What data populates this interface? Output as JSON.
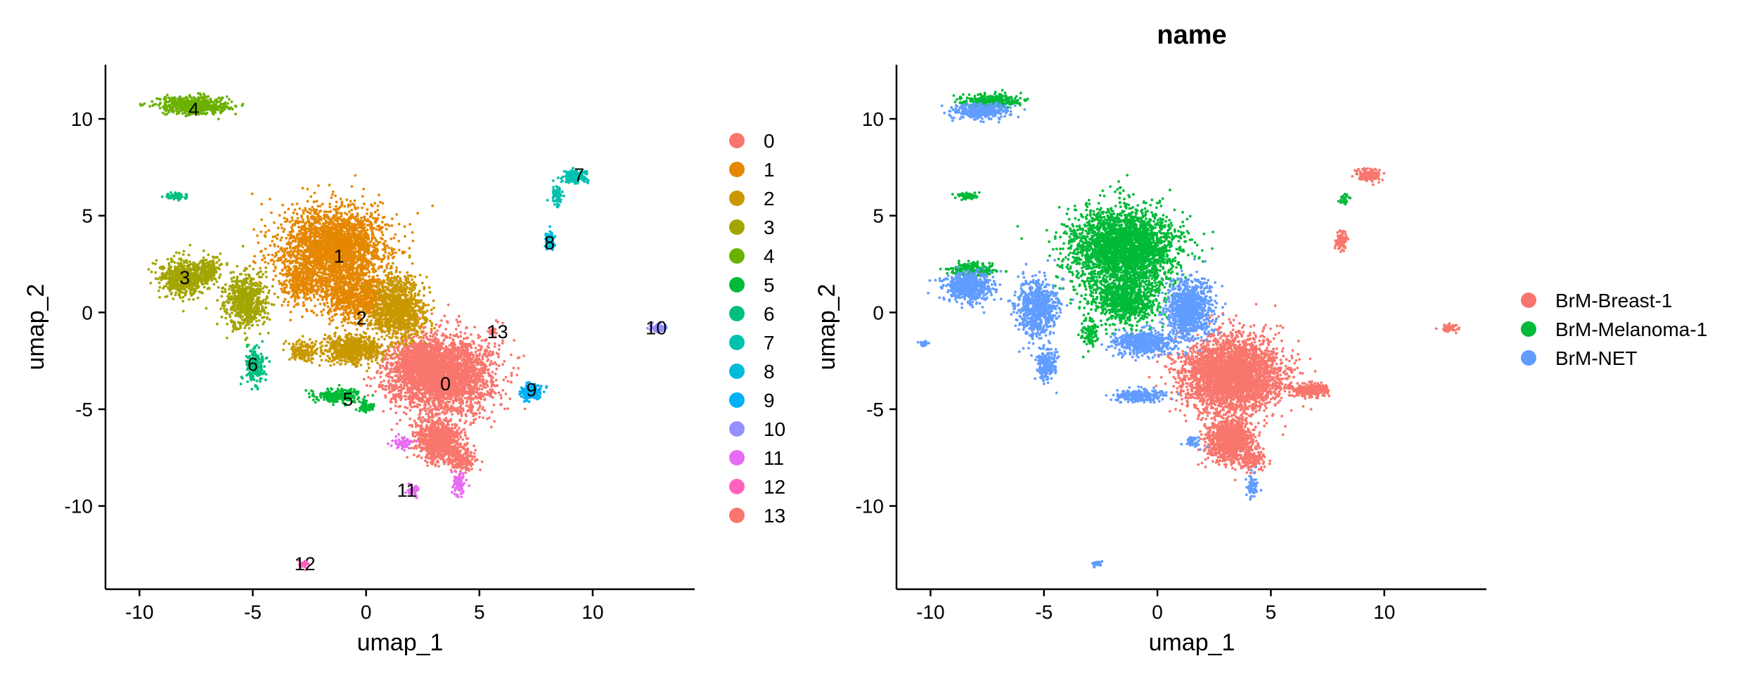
{
  "chart_data": [
    {
      "type": "scatter",
      "title": "",
      "xlabel": "umap_1",
      "ylabel": "umap_2",
      "xlim": [
        -11.5,
        14.5
      ],
      "ylim": [
        -14.3,
        12.8
      ],
      "xticks": [
        -10,
        -5,
        0,
        5,
        10
      ],
      "yticks": [
        10,
        5,
        0,
        -5,
        -10
      ],
      "grid": false,
      "legend": {
        "placement": "right",
        "entries": [
          {
            "name": "0",
            "color": "#F8766D"
          },
          {
            "name": "1",
            "color": "#E58700"
          },
          {
            "name": "2",
            "color": "#C99800"
          },
          {
            "name": "3",
            "color": "#A3A500"
          },
          {
            "name": "4",
            "color": "#6BB100"
          },
          {
            "name": "5",
            "color": "#00BA38"
          },
          {
            "name": "6",
            "color": "#00BF7D"
          },
          {
            "name": "7",
            "color": "#00C0AF"
          },
          {
            "name": "8",
            "color": "#00BCD8"
          },
          {
            "name": "9",
            "color": "#00B0F6"
          },
          {
            "name": "10",
            "color": "#9590FF"
          },
          {
            "name": "11",
            "color": "#E76BF3"
          },
          {
            "name": "12",
            "color": "#FF62BC"
          },
          {
            "name": "13",
            "color": "#F8766D"
          }
        ]
      },
      "series": [
        {
          "name": "0",
          "label_x": 3.5,
          "label_y": -3.7,
          "blobs": [
            [
              3.3,
              -3.2,
              2.2,
              1.9,
              3200
            ],
            [
              3.2,
              -6.6,
              1.0,
              1.1,
              900
            ],
            [
              2.2,
              -2.4,
              1.0,
              0.9,
              400
            ],
            [
              4.2,
              -7.6,
              0.6,
              0.6,
              200
            ]
          ]
        },
        {
          "name": "1",
          "label_x": -1.2,
          "label_y": 2.9,
          "blobs": [
            [
              -1.5,
              3.3,
              2.3,
              2.1,
              2600
            ],
            [
              -0.4,
              0.8,
              1.6,
              1.2,
              800
            ],
            [
              -3.0,
              1.5,
              0.7,
              1.1,
              250
            ]
          ]
        },
        {
          "name": "2",
          "label_x": -0.2,
          "label_y": -0.3,
          "blobs": [
            [
              1.4,
              0.2,
              1.2,
              1.6,
              1000
            ],
            [
              -0.6,
              -1.9,
              1.3,
              0.7,
              700
            ],
            [
              -2.8,
              -2.0,
              0.6,
              0.5,
              150
            ]
          ]
        },
        {
          "name": "3",
          "label_x": -8.0,
          "label_y": 1.8,
          "blobs": [
            [
              -8.0,
              1.8,
              1.1,
              0.9,
              650
            ],
            [
              -5.3,
              0.6,
              0.9,
              1.4,
              650
            ],
            [
              -6.9,
              2.2,
              0.5,
              0.6,
              150
            ]
          ]
        },
        {
          "name": "4",
          "label_x": -7.6,
          "label_y": 10.5,
          "blobs": [
            [
              -7.6,
              10.7,
              1.5,
              0.45,
              650
            ]
          ]
        },
        {
          "name": "5",
          "label_x": -0.8,
          "label_y": -4.5,
          "blobs": [
            [
              -1.2,
              -4.3,
              1.0,
              0.35,
              280
            ],
            [
              0.0,
              -4.9,
              0.3,
              0.3,
              60
            ]
          ]
        },
        {
          "name": "6",
          "label_x": -5.0,
          "label_y": -2.7,
          "blobs": [
            [
              -4.9,
              -2.7,
              0.45,
              0.9,
              200
            ],
            [
              -8.4,
              6.0,
              0.45,
              0.18,
              60
            ]
          ]
        },
        {
          "name": "7",
          "label_x": 9.4,
          "label_y": 7.1,
          "blobs": [
            [
              9.2,
              7.0,
              0.6,
              0.35,
              170
            ],
            [
              8.4,
              6.0,
              0.3,
              0.6,
              60
            ]
          ]
        },
        {
          "name": "8",
          "label_x": 8.1,
          "label_y": 3.6,
          "blobs": [
            [
              8.1,
              3.7,
              0.25,
              0.5,
              80
            ]
          ]
        },
        {
          "name": "9",
          "label_x": 7.3,
          "label_y": -4.0,
          "blobs": [
            [
              7.3,
              -4.1,
              0.45,
              0.35,
              220
            ]
          ]
        },
        {
          "name": "10",
          "label_x": 12.8,
          "label_y": -0.8,
          "blobs": [
            [
              12.9,
              -0.8,
              0.35,
              0.25,
              60
            ]
          ]
        },
        {
          "name": "11",
          "label_x": 1.8,
          "label_y": -9.2,
          "blobs": [
            [
              1.6,
              -6.7,
              0.45,
              0.35,
              60
            ],
            [
              4.1,
              -8.9,
              0.3,
              0.6,
              80
            ],
            [
              2.1,
              -9.2,
              0.3,
              0.3,
              40
            ]
          ]
        },
        {
          "name": "12",
          "label_x": -2.7,
          "label_y": -13.0,
          "blobs": [
            [
              -2.7,
              -13.0,
              0.2,
              0.2,
              30
            ]
          ]
        },
        {
          "name": "13",
          "label_x": 5.8,
          "label_y": -1.0,
          "blobs": [
            [
              5.6,
              -1.0,
              0.2,
              0.2,
              25
            ]
          ]
        }
      ]
    },
    {
      "type": "scatter",
      "title": "name",
      "xlabel": "umap_1",
      "ylabel": "umap_2",
      "xlim": [
        -11.5,
        14.5
      ],
      "ylim": [
        -14.3,
        12.8
      ],
      "xticks": [
        -10,
        -5,
        0,
        5,
        10
      ],
      "yticks": [
        10,
        5,
        0,
        -5,
        -10
      ],
      "grid": false,
      "legend": {
        "placement": "right",
        "entries": [
          {
            "name": "BrM-Breast-1",
            "color": "#F8766D"
          },
          {
            "name": "BrM-Melanoma-1",
            "color": "#00BA38"
          },
          {
            "name": "BrM-NET",
            "color": "#619CFF"
          }
        ]
      },
      "series": [
        {
          "name": "BrM-Breast-1",
          "blobs": [
            [
              3.3,
              -3.2,
              2.2,
              1.9,
              3400
            ],
            [
              3.2,
              -6.6,
              1.0,
              1.1,
              1000
            ],
            [
              6.7,
              -4.0,
              0.8,
              0.35,
              300
            ],
            [
              9.3,
              7.1,
              0.5,
              0.3,
              150
            ],
            [
              8.1,
              3.7,
              0.25,
              0.5,
              80
            ],
            [
              12.9,
              -0.8,
              0.35,
              0.25,
              60
            ],
            [
              4.2,
              -7.6,
              0.6,
              0.6,
              150
            ]
          ]
        },
        {
          "name": "BrM-Melanoma-1",
          "blobs": [
            [
              -1.5,
              3.3,
              2.3,
              2.1,
              2800
            ],
            [
              -1.4,
              0.6,
              1.5,
              1.2,
              800
            ],
            [
              -7.4,
              10.9,
              1.3,
              0.35,
              300
            ],
            [
              -8.2,
              2.2,
              1.0,
              0.4,
              200
            ],
            [
              -3.0,
              -1.0,
              0.4,
              0.7,
              100
            ],
            [
              -8.4,
              6.0,
              0.45,
              0.18,
              60
            ],
            [
              8.2,
              5.8,
              0.2,
              0.3,
              30
            ]
          ]
        },
        {
          "name": "BrM-NET",
          "blobs": [
            [
              -7.8,
              10.4,
              1.2,
              0.4,
              350
            ],
            [
              -8.3,
              1.3,
              1.0,
              0.7,
              600
            ],
            [
              -5.3,
              0.2,
              0.9,
              1.5,
              700
            ],
            [
              1.4,
              0.2,
              1.0,
              1.5,
              1000
            ],
            [
              -0.6,
              -1.6,
              1.2,
              0.6,
              600
            ],
            [
              -4.9,
              -2.7,
              0.45,
              0.9,
              200
            ],
            [
              -0.8,
              -4.3,
              1.1,
              0.3,
              250
            ],
            [
              -2.7,
              -13.0,
              0.2,
              0.2,
              30
            ],
            [
              4.2,
              -9.0,
              0.25,
              0.6,
              60
            ],
            [
              -10.3,
              -1.6,
              0.2,
              0.1,
              25
            ],
            [
              1.6,
              -6.7,
              0.35,
              0.3,
              40
            ]
          ]
        }
      ]
    }
  ]
}
